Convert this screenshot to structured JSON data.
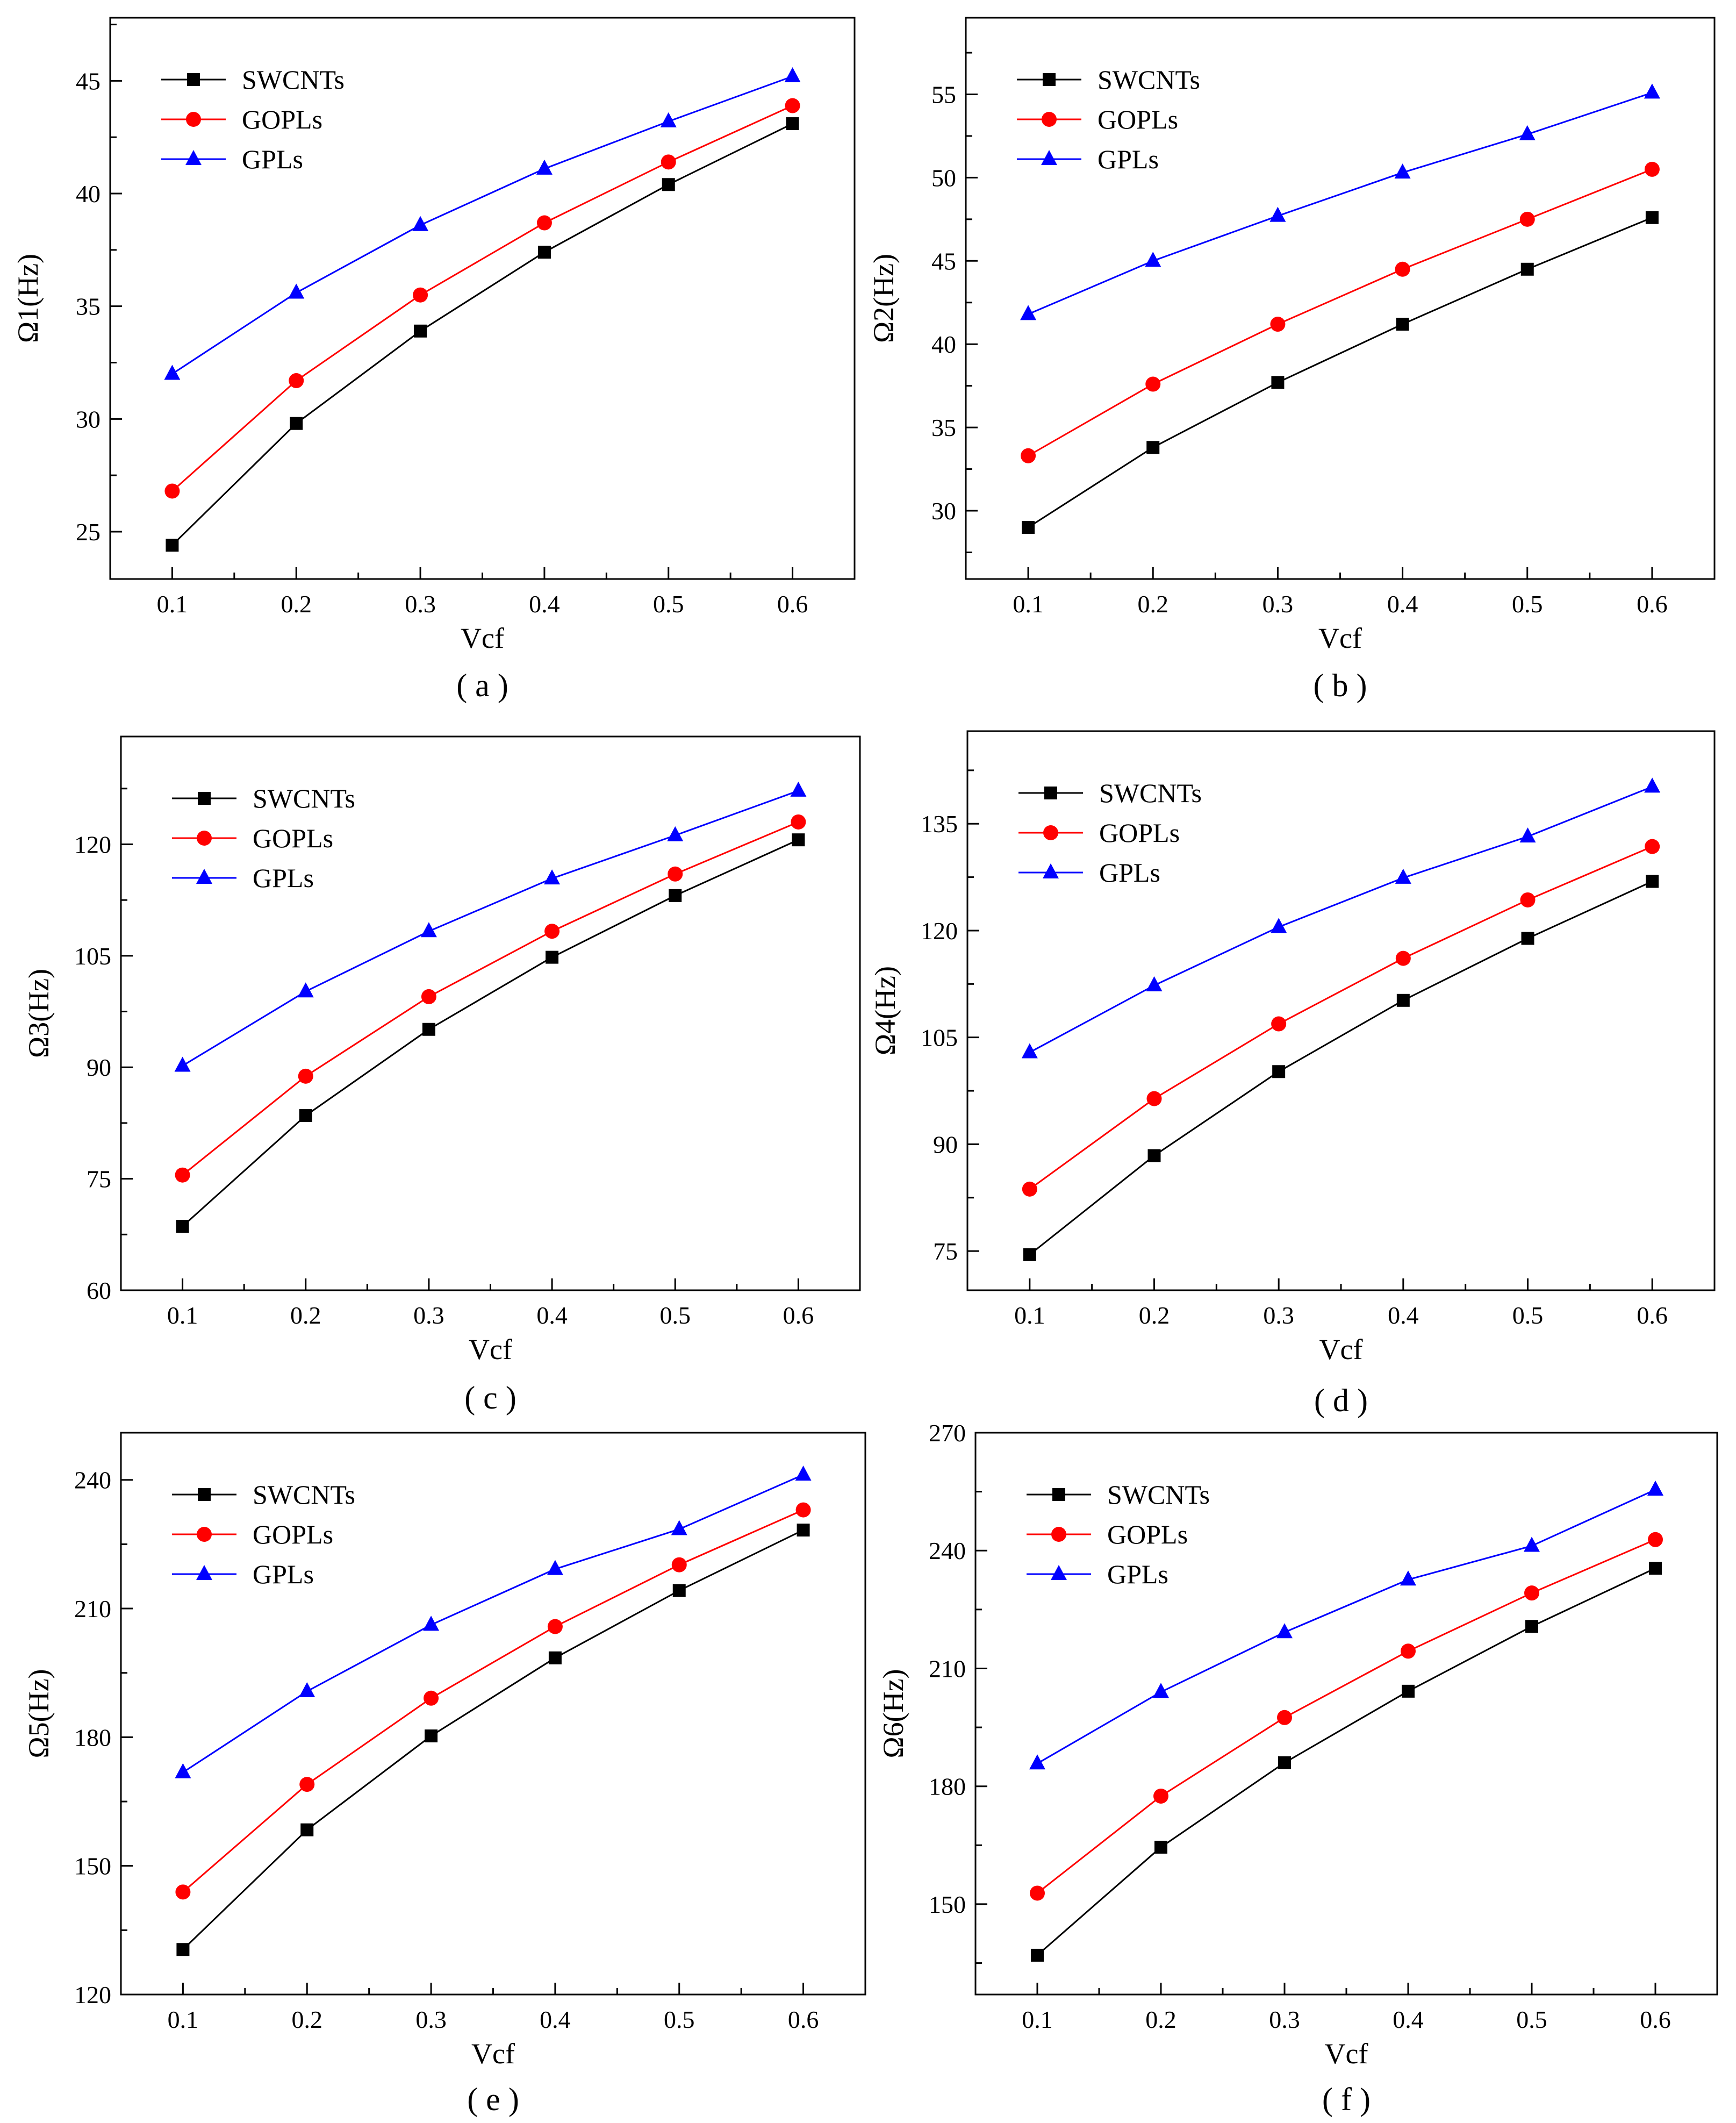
{
  "colors": {
    "swcnts": "#000000",
    "gopls": "#ff0000",
    "gpls": "#0000ff",
    "axis": "#000000",
    "background": "#ffffff"
  },
  "chart_data": [
    {
      "id": "a",
      "type": "line",
      "caption": "( a )",
      "xlabel": "Vcf",
      "ylabel": "Ω1(Hz)",
      "x": [
        0.1,
        0.2,
        0.3,
        0.4,
        0.5,
        0.6
      ],
      "xticks": [
        "0.1",
        "0.2",
        "0.3",
        "0.4",
        "0.5",
        "0.6"
      ],
      "xlim": [
        0.05,
        0.65
      ],
      "ylim": [
        22.9,
        47.8
      ],
      "yticks": [
        25,
        30,
        35,
        40,
        45
      ],
      "legend_position": "top-left",
      "series": [
        {
          "name": "SWCNTs",
          "marker": "square",
          "color": "#000000",
          "values": [
            24.4,
            29.8,
            33.9,
            37.4,
            40.4,
            43.1
          ]
        },
        {
          "name": "GOPLs",
          "marker": "circle",
          "color": "#ff0000",
          "values": [
            26.8,
            31.7,
            35.5,
            38.7,
            41.4,
            43.9
          ]
        },
        {
          "name": "GPLs",
          "marker": "triangle",
          "color": "#0000ff",
          "values": [
            32.0,
            35.6,
            38.6,
            41.1,
            43.2,
            45.2
          ]
        }
      ]
    },
    {
      "id": "b",
      "type": "line",
      "caption": "( b )",
      "xlabel": "Vcf",
      "ylabel": "Ω2(Hz)",
      "x": [
        0.1,
        0.2,
        0.3,
        0.4,
        0.5,
        0.6
      ],
      "xticks": [
        "0.1",
        "0.2",
        "0.3",
        "0.4",
        "0.5",
        "0.6"
      ],
      "xlim": [
        0.05,
        0.65
      ],
      "ylim": [
        25.9,
        59.6
      ],
      "yticks": [
        30,
        35,
        40,
        45,
        50,
        55
      ],
      "legend_position": "top-left",
      "series": [
        {
          "name": "SWCNTs",
          "marker": "square",
          "color": "#000000",
          "values": [
            29.0,
            33.8,
            37.7,
            41.2,
            44.5,
            47.6
          ]
        },
        {
          "name": "GOPLs",
          "marker": "circle",
          "color": "#ff0000",
          "values": [
            33.3,
            37.6,
            41.2,
            44.5,
            47.5,
            50.5
          ]
        },
        {
          "name": "GPLs",
          "marker": "triangle",
          "color": "#0000ff",
          "values": [
            41.8,
            45.0,
            47.7,
            50.3,
            52.6,
            55.1
          ]
        }
      ]
    },
    {
      "id": "c",
      "type": "line",
      "caption": "( c )",
      "xlabel": "Vcf",
      "ylabel": "Ω3(Hz)",
      "x": [
        0.1,
        0.2,
        0.3,
        0.4,
        0.5,
        0.6
      ],
      "xticks": [
        "0.1",
        "0.2",
        "0.3",
        "0.4",
        "0.5",
        "0.6"
      ],
      "xlim": [
        0.05,
        0.65
      ],
      "ylim": [
        60.0,
        134.5
      ],
      "yticks": [
        60,
        75,
        90,
        105,
        120
      ],
      "legend_position": "top-left",
      "series": [
        {
          "name": "SWCNTs",
          "marker": "square",
          "color": "#000000",
          "values": [
            68.6,
            83.5,
            95.1,
            104.8,
            113.1,
            120.6
          ]
        },
        {
          "name": "GOPLs",
          "marker": "circle",
          "color": "#ff0000",
          "values": [
            75.5,
            88.8,
            99.5,
            108.3,
            116.0,
            123.0
          ]
        },
        {
          "name": "GPLs",
          "marker": "triangle",
          "color": "#0000ff",
          "values": [
            90.2,
            100.2,
            108.3,
            115.4,
            121.2,
            127.2
          ]
        }
      ]
    },
    {
      "id": "d",
      "type": "line",
      "caption": "( d )",
      "xlabel": "Vcf",
      "ylabel": "Ω4(Hz)",
      "x": [
        0.1,
        0.2,
        0.3,
        0.4,
        0.5,
        0.6
      ],
      "xticks": [
        "0.1",
        "0.2",
        "0.3",
        "0.4",
        "0.5",
        "0.6"
      ],
      "xlim": [
        0.05,
        0.65
      ],
      "ylim": [
        69.5,
        148.0
      ],
      "yticks": [
        75,
        90,
        105,
        120,
        135
      ],
      "legend_position": "top-left",
      "series": [
        {
          "name": "SWCNTs",
          "marker": "square",
          "color": "#000000",
          "values": [
            74.5,
            88.4,
            100.2,
            110.2,
            118.9,
            126.9
          ]
        },
        {
          "name": "GOPLs",
          "marker": "circle",
          "color": "#ff0000",
          "values": [
            83.7,
            96.4,
            106.9,
            116.1,
            124.3,
            131.8
          ]
        },
        {
          "name": "GPLs",
          "marker": "triangle",
          "color": "#0000ff",
          "values": [
            102.9,
            112.3,
            120.5,
            127.4,
            133.2,
            140.2
          ]
        }
      ]
    },
    {
      "id": "e",
      "type": "line",
      "caption": "( e )",
      "xlabel": "Vcf",
      "ylabel": "Ω5(Hz)",
      "x": [
        0.1,
        0.2,
        0.3,
        0.4,
        0.5,
        0.6
      ],
      "xticks": [
        "0.1",
        "0.2",
        "0.3",
        "0.4",
        "0.5",
        "0.6"
      ],
      "xlim": [
        0.05,
        0.65
      ],
      "ylim": [
        120.0,
        251.0
      ],
      "yticks": [
        120,
        150,
        180,
        210,
        240
      ],
      "legend_position": "top-left",
      "series": [
        {
          "name": "SWCNTs",
          "marker": "square",
          "color": "#000000",
          "values": [
            130.5,
            158.4,
            180.3,
            198.5,
            214.2,
            228.3
          ]
        },
        {
          "name": "GOPLs",
          "marker": "circle",
          "color": "#ff0000",
          "values": [
            143.9,
            169.0,
            189.1,
            205.8,
            220.2,
            233.0
          ]
        },
        {
          "name": "GPLs",
          "marker": "triangle",
          "color": "#0000ff",
          "values": [
            171.8,
            190.7,
            206.2,
            219.2,
            228.5,
            241.2
          ]
        }
      ]
    },
    {
      "id": "f",
      "type": "line",
      "caption": "( f )",
      "xlabel": "Vcf",
      "ylabel": "Ω6(Hz)",
      "x": [
        0.1,
        0.2,
        0.3,
        0.4,
        0.5,
        0.6
      ],
      "xticks": [
        "0.1",
        "0.2",
        "0.3",
        "0.4",
        "0.5",
        "0.6"
      ],
      "xlim": [
        0.05,
        0.65
      ],
      "ylim": [
        127.0,
        270.0
      ],
      "yticks": [
        150,
        180,
        210,
        240,
        270
      ],
      "legend_position": "top-left",
      "series": [
        {
          "name": "SWCNTs",
          "marker": "square",
          "color": "#000000",
          "values": [
            137.0,
            164.5,
            186.0,
            204.2,
            220.7,
            235.5
          ]
        },
        {
          "name": "GOPLs",
          "marker": "circle",
          "color": "#ff0000",
          "values": [
            152.8,
            177.5,
            197.5,
            214.4,
            229.2,
            242.8
          ]
        },
        {
          "name": "GPLs",
          "marker": "triangle",
          "color": "#0000ff",
          "values": [
            185.8,
            204.0,
            219.2,
            232.6,
            241.2,
            255.5
          ]
        }
      ]
    }
  ]
}
